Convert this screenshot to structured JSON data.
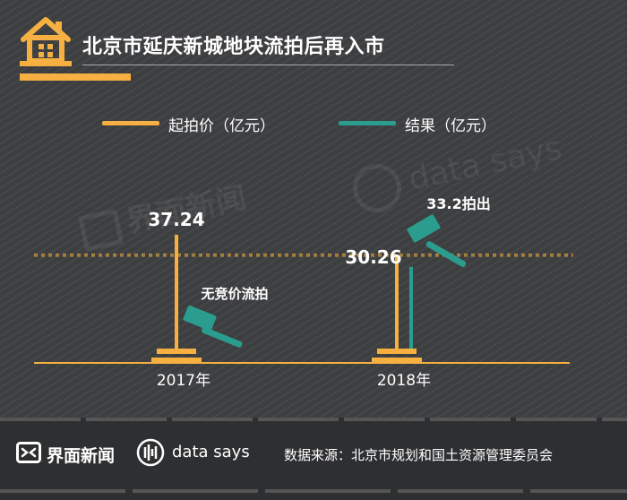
{
  "header": {
    "title": "北京市延庆新城地块流拍后再入市",
    "icon": "house-icon"
  },
  "legend": [
    {
      "label": "起拍价（亿元）",
      "color": "#f5b041"
    },
    {
      "label": "结果（亿元）",
      "color": "#2a9d8f"
    }
  ],
  "chart_data": {
    "type": "bar",
    "categories": [
      "2017年",
      "2018年"
    ],
    "series": [
      {
        "name": "起拍价（亿元）",
        "values": [
          37.24,
          30.26
        ],
        "color": "#f5b041"
      },
      {
        "name": "结果（亿元）",
        "values": [
          null,
          33.2
        ],
        "color": "#2a9d8f"
      }
    ],
    "data_labels": [
      "37.24",
      "30.26"
    ],
    "annotations": [
      "无竞价流拍",
      "33.2拍出"
    ],
    "reference_lines": [
      33.2,
      30.26
    ],
    "ylim": [
      0,
      37.24
    ]
  },
  "watermarks": {
    "brand_cn": "界面新闻",
    "brand_en": "data says"
  },
  "footer": {
    "brand_cn": "界面新闻",
    "brand_en": "data says",
    "source": "数据来源：北京市规划和国土资源管理委员会"
  }
}
